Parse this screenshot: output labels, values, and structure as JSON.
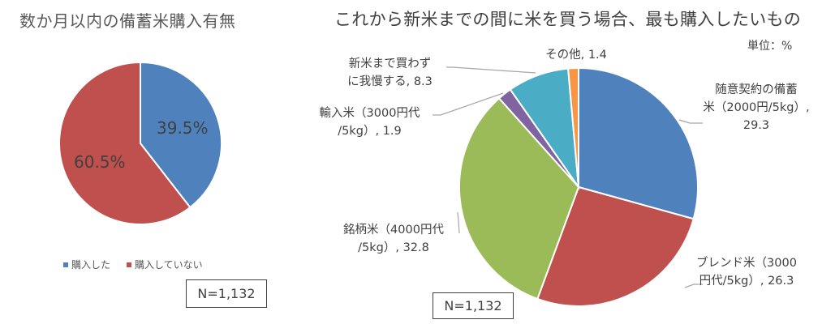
{
  "left_chart": {
    "title": "数か月以内の備蓄米購入有無",
    "legend": [
      {
        "label": "購入した",
        "color": "#4F81BD"
      },
      {
        "label": "購入していない",
        "color": "#C0504D"
      }
    ],
    "slice_labels": [
      "39.5%",
      "60.5%"
    ],
    "sample_size": "N=1,132"
  },
  "right_chart": {
    "title": "これから新米までの間に米を買う場合、最も購入したいもの",
    "unit": "単位：%",
    "labels": {
      "zuii_line1": "随意契約の備蓄",
      "zuii_line2": "米（2000円/5kg）,",
      "zuii_line3": "29.3",
      "blend_line1": "ブレンド米（3000",
      "blend_line2": "円代/5kg）, 26.3",
      "meigara_line1": "銘柄米（4000円代",
      "meigara_line2": "/5kg）, 32.8",
      "yunyu_line1": "輸入米（3000円代",
      "yunyu_line2": "/5kg）, 1.9",
      "gaman_line1": "新米まで買わず",
      "gaman_line2": "に我慢する, 8.3",
      "other": "その他, 1.4"
    },
    "sample_size": "N=1,132"
  },
  "chart_data": [
    {
      "type": "pie",
      "title": "数か月以内の備蓄米購入有無",
      "categories": [
        "購入した",
        "購入していない"
      ],
      "values": [
        39.5,
        60.5
      ],
      "colors": [
        "#4F81BD",
        "#C0504D"
      ],
      "unit": "%",
      "legend_position": "bottom",
      "annotation": "N=1,132"
    },
    {
      "type": "pie",
      "title": "これから新米までの間に米を買う場合、最も購入したいもの",
      "categories": [
        "随意契約の備蓄米（2000円/5kg）",
        "ブレンド米（3000円代/5kg）",
        "銘柄米（4000円代/5kg）",
        "輸入米（3000円代/5kg）",
        "新米まで買わずに我慢する",
        "その他"
      ],
      "values": [
        29.3,
        26.3,
        32.8,
        1.9,
        8.3,
        1.4
      ],
      "colors": [
        "#4F81BD",
        "#C0504D",
        "#9BBB59",
        "#8064A2",
        "#4BACC6",
        "#F79646"
      ],
      "unit": "%",
      "annotation": "N=1,132"
    }
  ]
}
